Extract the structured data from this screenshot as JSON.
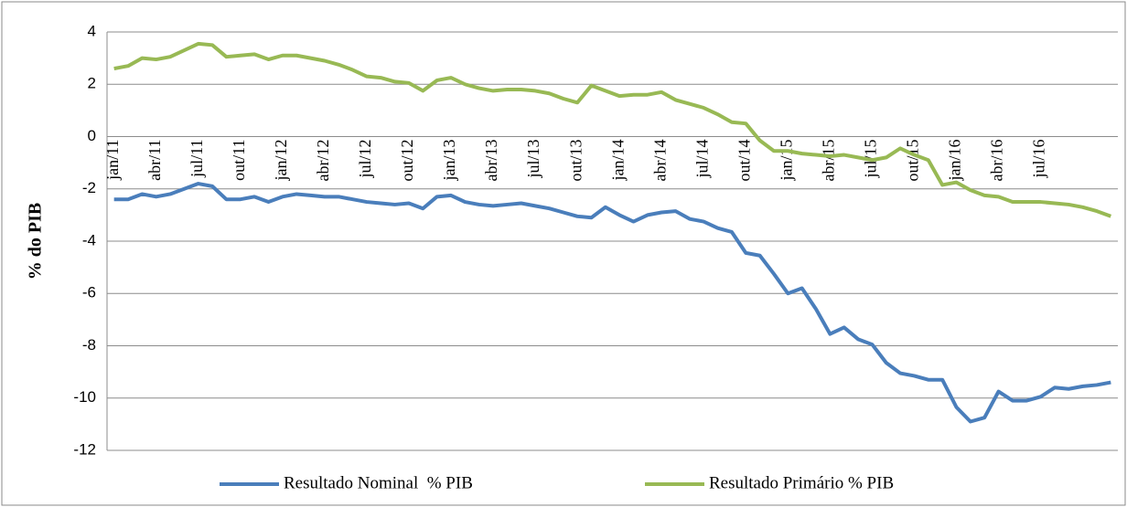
{
  "chart_data": {
    "type": "line",
    "y_label": "% do PIB",
    "categories": [
      "jan/11",
      null,
      null,
      "abr/11",
      null,
      null,
      "jul/11",
      null,
      null,
      "out/11",
      null,
      null,
      "jan/12",
      null,
      null,
      "abr/12",
      null,
      null,
      "jul/12",
      null,
      null,
      "out/12",
      null,
      null,
      "jan/13",
      null,
      null,
      "abr/13",
      null,
      null,
      "jul/13",
      null,
      null,
      "out/13",
      null,
      null,
      "jan/14",
      null,
      null,
      "abr/14",
      null,
      null,
      "jul/14",
      null,
      null,
      "out/14",
      null,
      null,
      "jan/15",
      null,
      null,
      "abr/15",
      null,
      null,
      "jul/15",
      null,
      null,
      "out/15",
      null,
      null,
      "jan/16",
      null,
      null,
      "abr/16",
      null,
      null,
      "jul/16",
      null,
      null,
      null,
      null,
      null
    ],
    "series": [
      {
        "name": "Resultado Nominal  % PIB",
        "color": "#4a7ebb",
        "values": [
          -2.4,
          -2.4,
          -2.2,
          -2.3,
          -2.2,
          -2.0,
          -1.8,
          -1.9,
          -2.4,
          -2.4,
          -2.3,
          -2.5,
          -2.3,
          -2.2,
          -2.25,
          -2.3,
          -2.3,
          -2.4,
          -2.5,
          -2.55,
          -2.6,
          -2.55,
          -2.75,
          -2.3,
          -2.25,
          -2.5,
          -2.6,
          -2.65,
          -2.6,
          -2.55,
          -2.65,
          -2.75,
          -2.9,
          -3.05,
          -3.1,
          -2.7,
          -3.0,
          -3.25,
          -3.0,
          -2.9,
          -2.85,
          -3.15,
          -3.25,
          -3.5,
          -3.65,
          -4.45,
          -4.55,
          -5.25,
          -6.0,
          -5.8,
          -6.6,
          -7.55,
          -7.3,
          -7.75,
          -7.95,
          -8.65,
          -9.05,
          -9.15,
          -9.3,
          -9.3,
          -10.35,
          -10.9,
          -10.75,
          -9.75,
          -10.1,
          -10.1,
          -9.95,
          -9.6,
          -9.65,
          -9.55,
          -9.5,
          -9.4
        ]
      },
      {
        "name": "Resultado Primário % PIB",
        "color": "#98b954",
        "values": [
          2.6,
          2.7,
          3.0,
          2.95,
          3.05,
          3.3,
          3.55,
          3.5,
          3.05,
          3.1,
          3.15,
          2.95,
          3.1,
          3.1,
          3.0,
          2.9,
          2.75,
          2.55,
          2.3,
          2.25,
          2.1,
          2.05,
          1.75,
          2.15,
          2.25,
          2.0,
          1.85,
          1.75,
          1.8,
          1.8,
          1.75,
          1.65,
          1.45,
          1.3,
          1.95,
          1.75,
          1.55,
          1.6,
          1.6,
          1.7,
          1.4,
          1.25,
          1.1,
          0.85,
          0.55,
          0.5,
          -0.15,
          -0.55,
          -0.55,
          -0.65,
          -0.7,
          -0.75,
          -0.7,
          -0.8,
          -0.9,
          -0.8,
          -0.45,
          -0.7,
          -0.9,
          -1.85,
          -1.75,
          -2.05,
          -2.25,
          -2.3,
          -2.5,
          -2.5,
          -2.5,
          -2.55,
          -2.6,
          -2.7,
          -2.85,
          -3.05
        ]
      }
    ],
    "ylim": [
      -12,
      4
    ],
    "yticks": [
      -12,
      -10,
      -8,
      -6,
      -4,
      -2,
      0,
      2,
      4
    ],
    "grid": true
  }
}
